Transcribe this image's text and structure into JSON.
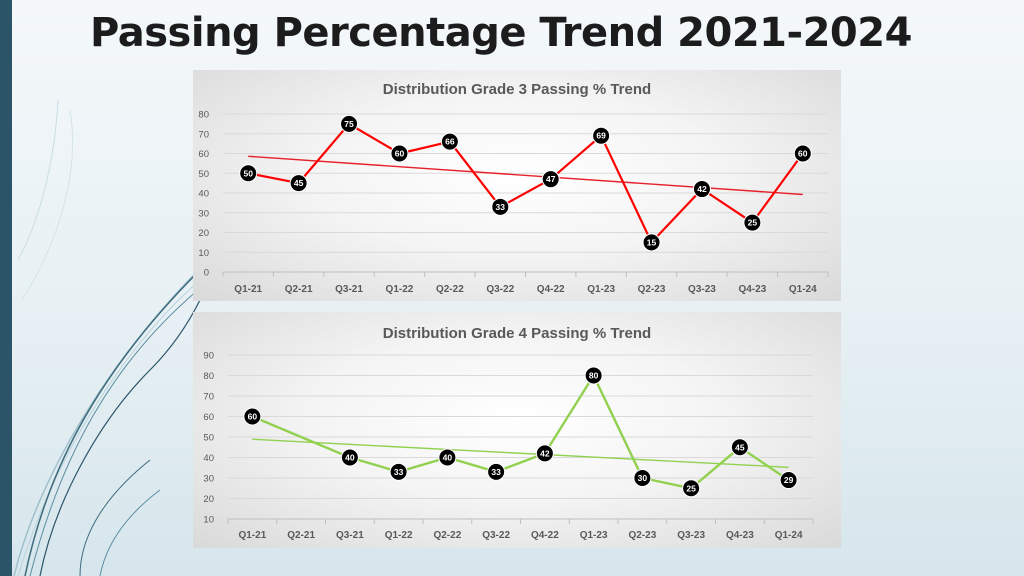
{
  "page": {
    "title": "Passing Percentage Trend 2021-2024"
  },
  "colors": {
    "left_bar": "#2c5469",
    "grade3_series": "#ff0000",
    "grade3_trend": "#e8202a",
    "grade4_series": "#92d050",
    "grade4_trend": "#92d050",
    "marker_fill": "#000000",
    "grid": "#d9d9d9"
  },
  "chart_data": [
    {
      "id": "grade3",
      "type": "line",
      "title": "Distribution Grade 3 Passing % Trend",
      "categories": [
        "Q1-21",
        "Q2-21",
        "Q3-21",
        "Q1-22",
        "Q2-22",
        "Q3-22",
        "Q4-22",
        "Q1-23",
        "Q2-23",
        "Q3-23",
        "Q4-23",
        "Q1-24"
      ],
      "series": [
        {
          "name": "Grade 3 Passing %",
          "values": [
            50,
            45,
            75,
            60,
            66,
            33,
            47,
            69,
            15,
            42,
            25,
            60
          ],
          "data_labels": true
        }
      ],
      "trendline": {
        "type": "linear"
      },
      "ylim": [
        0,
        80
      ],
      "yticks": [
        0,
        10,
        20,
        30,
        40,
        50,
        60,
        70,
        80
      ],
      "xlabel": "",
      "ylabel": "",
      "grid": true,
      "legend": "none"
    },
    {
      "id": "grade4",
      "type": "line",
      "title": "Distribution Grade 4 Passing % Trend",
      "categories": [
        "Q1-21",
        "Q2-21",
        "Q3-21",
        "Q1-22",
        "Q2-22",
        "Q3-22",
        "Q4-22",
        "Q1-23",
        "Q2-23",
        "Q3-23",
        "Q4-23",
        "Q1-24"
      ],
      "series": [
        {
          "name": "Grade 4 Passing %",
          "values": [
            60,
            null,
            40,
            33,
            40,
            33,
            42,
            80,
            30,
            25,
            45,
            29
          ],
          "data_labels": true
        }
      ],
      "trendline": {
        "type": "linear"
      },
      "ylim": [
        10,
        90
      ],
      "yticks": [
        10,
        20,
        30,
        40,
        50,
        60,
        70,
        80,
        90
      ],
      "xlabel": "",
      "ylabel": "",
      "grid": true,
      "legend": "none"
    }
  ]
}
